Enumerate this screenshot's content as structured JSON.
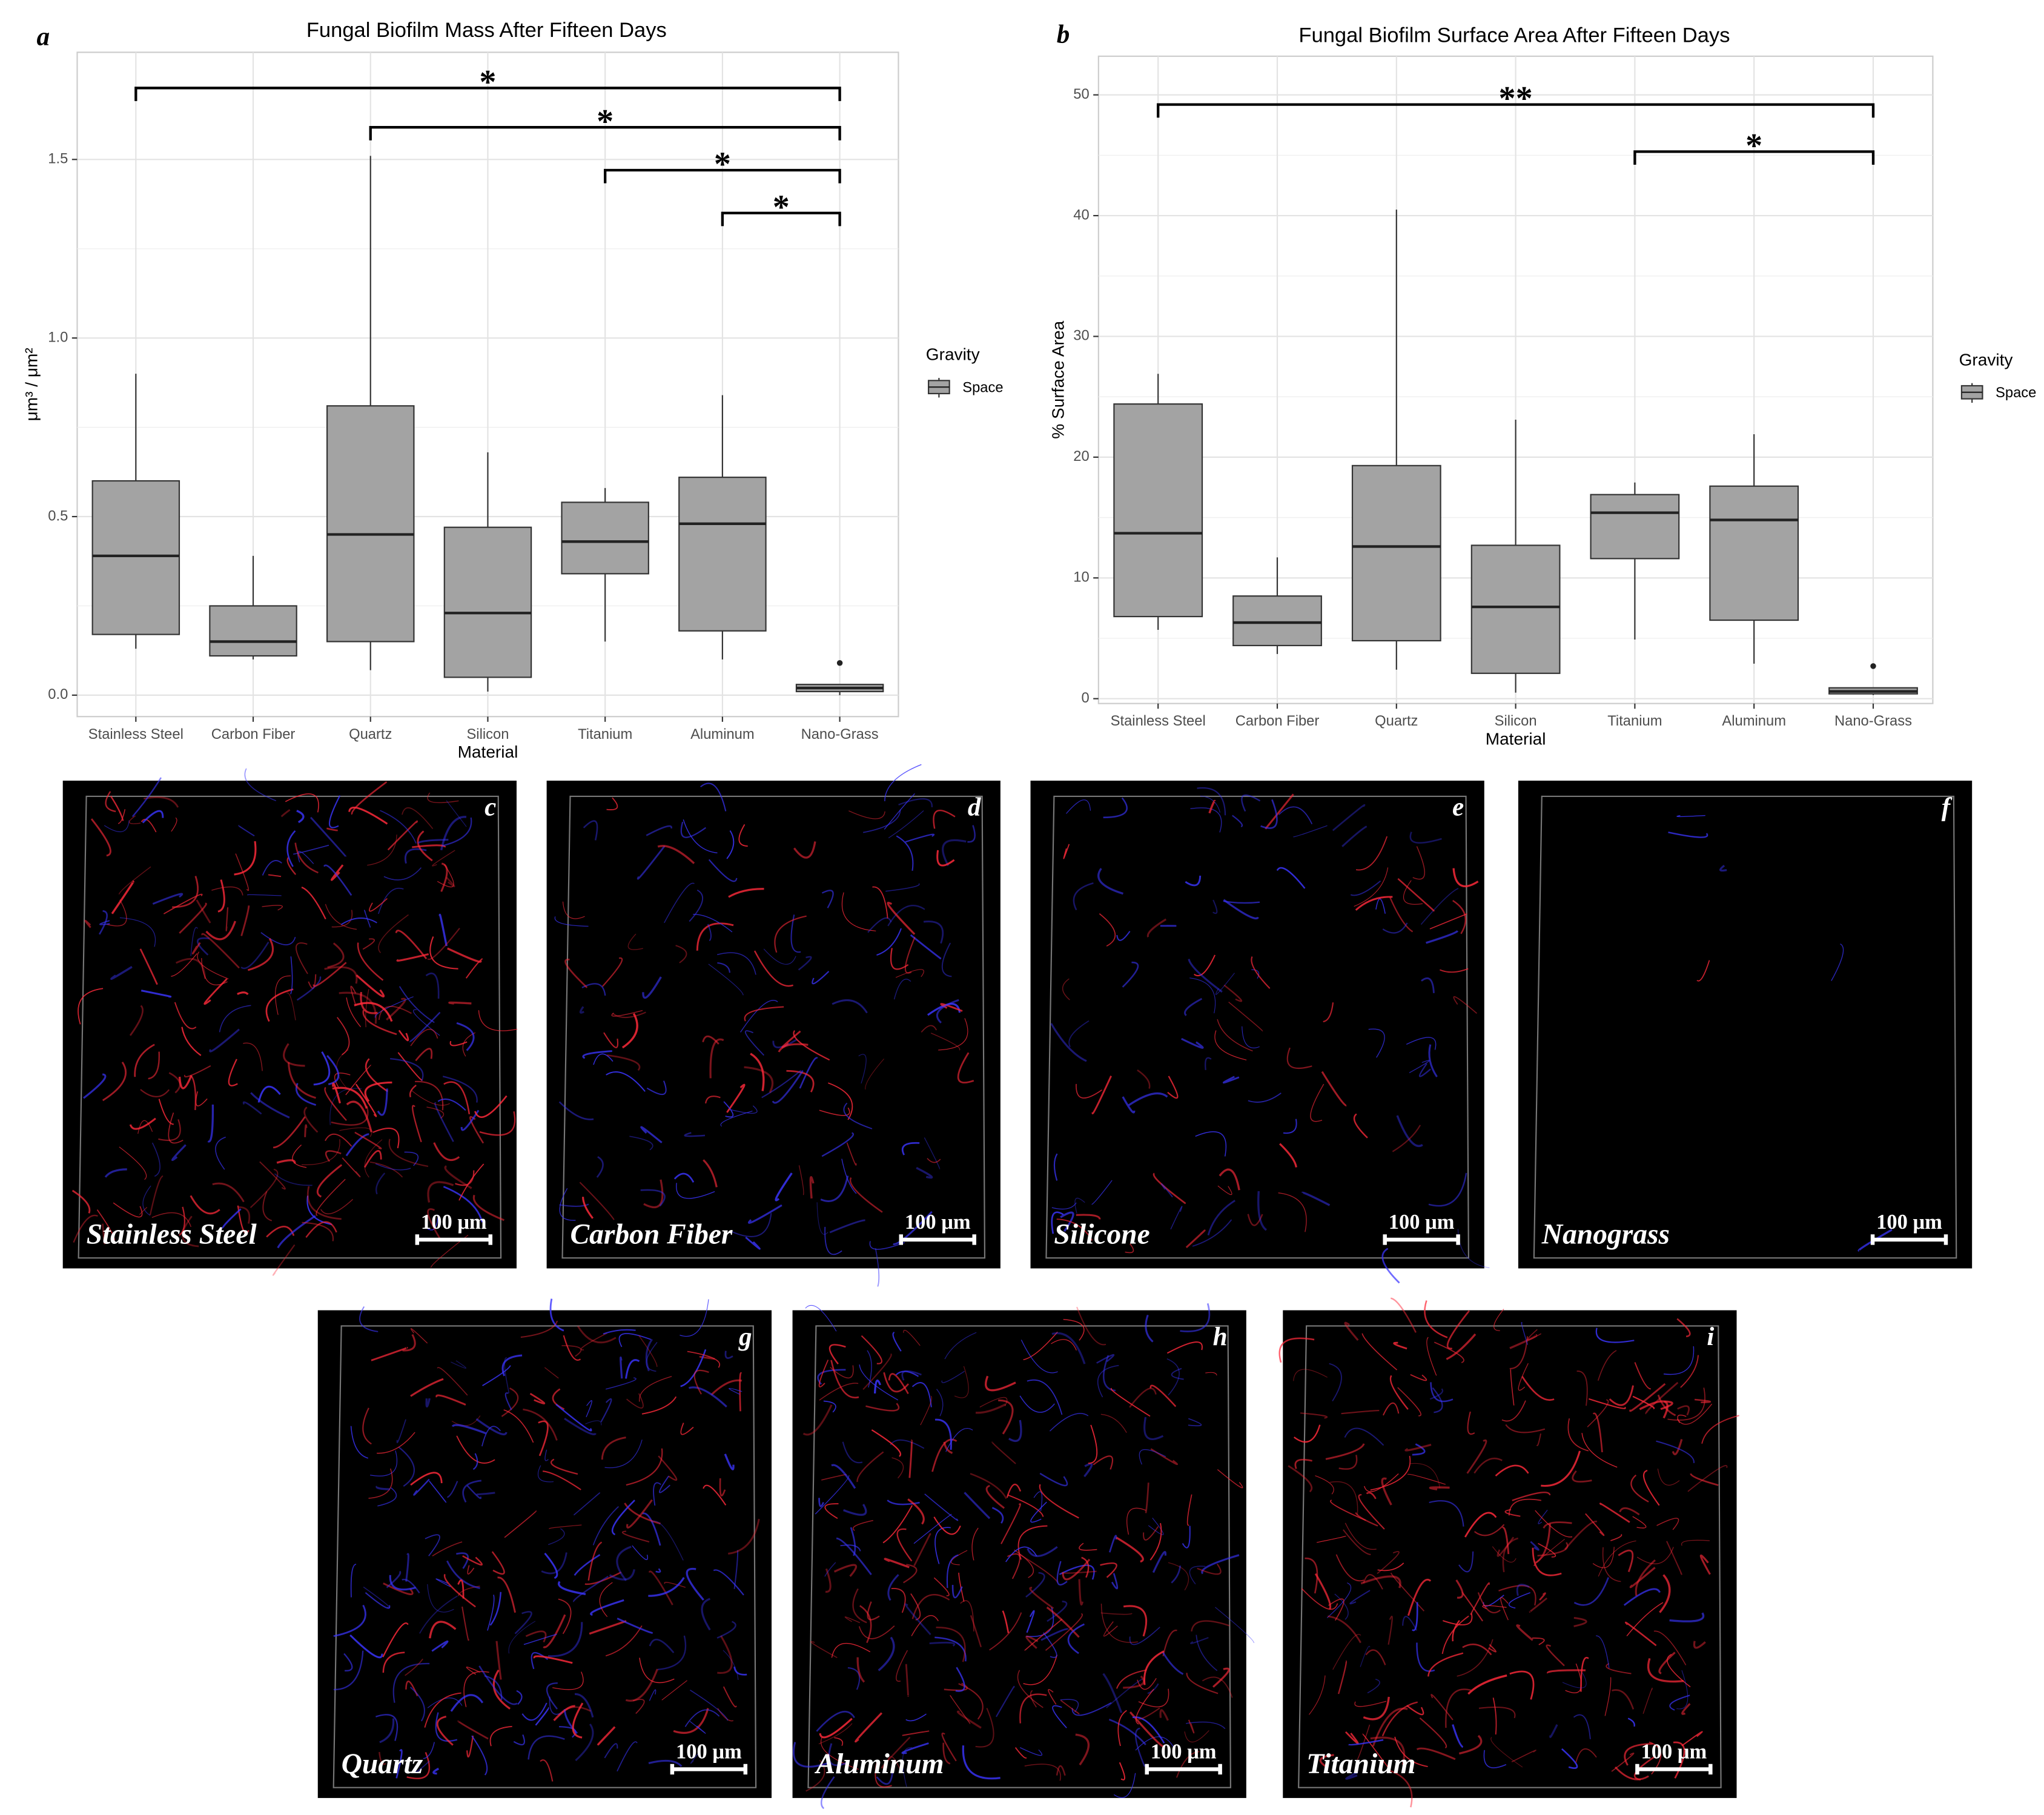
{
  "chart_data": [
    {
      "type": "box",
      "letter": "a",
      "title": "Fungal Biofilm Mass After Fifteen Days",
      "x_label": "Material",
      "y_label": "μm³ / μm²",
      "categories": [
        "Stainless Steel",
        "Carbon Fiber",
        "Quartz",
        "Silicon",
        "Titanium",
        "Aluminum",
        "Nano-Grass"
      ],
      "series": [
        {
          "name": "Space",
          "color": "#a3a3a3",
          "min": [
            0.13,
            0.1,
            0.07,
            0.01,
            0.15,
            0.1,
            0.0
          ],
          "q1": [
            0.17,
            0.11,
            0.15,
            0.05,
            0.34,
            0.18,
            0.01
          ],
          "median": [
            0.39,
            0.15,
            0.45,
            0.23,
            0.43,
            0.48,
            0.02
          ],
          "q3": [
            0.6,
            0.25,
            0.81,
            0.47,
            0.54,
            0.61,
            0.03
          ],
          "max": [
            0.9,
            0.39,
            1.51,
            0.68,
            0.58,
            0.84,
            0.03
          ],
          "outliers": [
            [],
            [],
            [],
            [],
            [],
            [],
            [
              0.09
            ]
          ]
        }
      ],
      "legend_title": "Gravity",
      "annotations": [
        {
          "from": 0,
          "to": 6,
          "y": 1.7,
          "label": "*"
        },
        {
          "from": 2,
          "to": 6,
          "y": 1.59,
          "label": "*"
        },
        {
          "from": 4,
          "to": 6,
          "y": 1.47,
          "label": "*"
        },
        {
          "from": 5,
          "to": 6,
          "y": 1.35,
          "label": "*"
        }
      ],
      "ylim": [
        -0.06,
        1.8
      ],
      "yticks": [
        {
          "value": 0,
          "label": "0.0"
        },
        0.5,
        {
          "value": 1,
          "label": "1.0"
        },
        1.5
      ],
      "grid": true
    },
    {
      "type": "box",
      "letter": "b",
      "title": "Fungal Biofilm Surface Area After Fifteen Days",
      "x_label": "Material",
      "y_label": "% Surface Area",
      "categories": [
        "Stainless Steel",
        "Carbon Fiber",
        "Quartz",
        "Silicon",
        "Titanium",
        "Aluminum",
        "Nano-Grass"
      ],
      "series": [
        {
          "name": "Space",
          "color": "#a3a3a3",
          "min": [
            5.7,
            3.7,
            2.4,
            0.5,
            4.9,
            2.9,
            0.3
          ],
          "q1": [
            6.8,
            4.4,
            4.8,
            2.1,
            11.6,
            6.5,
            0.4
          ],
          "median": [
            13.7,
            6.3,
            12.6,
            7.6,
            15.4,
            14.8,
            0.6
          ],
          "q3": [
            24.4,
            8.5,
            19.3,
            12.7,
            16.9,
            17.6,
            0.9
          ],
          "max": [
            26.9,
            11.7,
            40.5,
            23.1,
            17.9,
            21.9,
            0.9
          ],
          "outliers": [
            [],
            [],
            [],
            [],
            [],
            [],
            [
              2.7
            ]
          ]
        }
      ],
      "legend_title": "Gravity",
      "annotations": [
        {
          "from": 0,
          "to": 6,
          "y": 49.2,
          "label": "**"
        },
        {
          "from": 4,
          "to": 6,
          "y": 45.3,
          "label": "*"
        }
      ],
      "ylim": [
        -0.4,
        53.2
      ],
      "yticks": [
        0,
        10,
        20,
        30,
        40,
        50
      ],
      "grid": true
    }
  ],
  "panels": [
    {
      "letter": "c",
      "label": "Stainless Steel",
      "scale_bar": "100 μm"
    },
    {
      "letter": "d",
      "label": "Carbon Fiber",
      "scale_bar": "100 μm"
    },
    {
      "letter": "e",
      "label": "Silicone",
      "scale_bar": "100 μm"
    },
    {
      "letter": "f",
      "label": "Nanograss",
      "scale_bar": "100 μm"
    },
    {
      "letter": "g",
      "label": "Quartz",
      "scale_bar": "100 μm"
    },
    {
      "letter": "h",
      "label": "Aluminum",
      "scale_bar": "100 μm"
    },
    {
      "letter": "i",
      "label": "Titanium",
      "scale_bar": "100 μm"
    }
  ]
}
